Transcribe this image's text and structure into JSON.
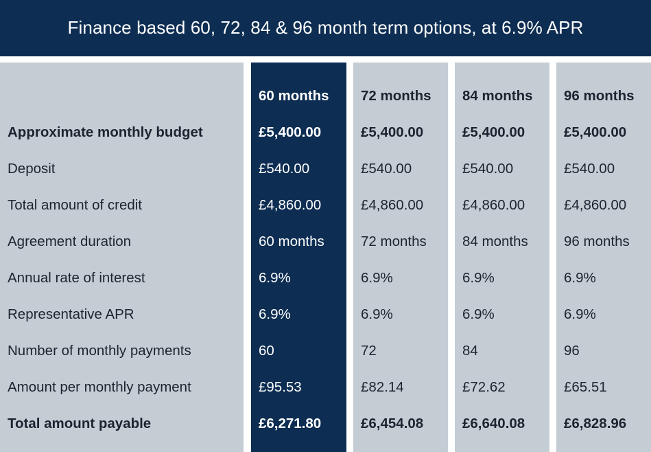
{
  "banner": {
    "title": "Finance based 60, 72, 84 & 96 month term options, at 6.9% APR"
  },
  "row_labels": [
    "Approximate monthly budget",
    "Deposit",
    "Total amount of credit",
    "Agreement duration",
    "Annual rate of interest",
    "Representative APR",
    "Number of monthly payments",
    "Amount per monthly payment",
    "Total amount payable"
  ],
  "columns": [
    {
      "header": "60 months",
      "values": [
        "£5,400.00",
        "£540.00",
        "£4,860.00",
        "60 months",
        "6.9%",
        "6.9%",
        "60",
        "£95.53",
        "£6,271.80"
      ]
    },
    {
      "header": "72 months",
      "values": [
        "£5,400.00",
        "£540.00",
        "£4,860.00",
        "72 months",
        "6.9%",
        "6.9%",
        "72",
        "£82.14",
        "£6,454.08"
      ]
    },
    {
      "header": "84 months",
      "values": [
        "£5,400.00",
        "£540.00",
        "£4,860.00",
        "84 months",
        "6.9%",
        "6.9%",
        "84",
        "£72.62",
        "£6,640.08"
      ]
    },
    {
      "header": "96 months",
      "values": [
        "£5,400.00",
        "£540.00",
        "£4,860.00",
        "96 months",
        "6.9%",
        "6.9%",
        "96",
        "£65.51",
        "£6,828.96"
      ]
    }
  ],
  "colors": {
    "navy": "#0d2d52",
    "panel": "#c4ccd4",
    "text": "#1c2430",
    "highlight_text": "#ffffff"
  }
}
